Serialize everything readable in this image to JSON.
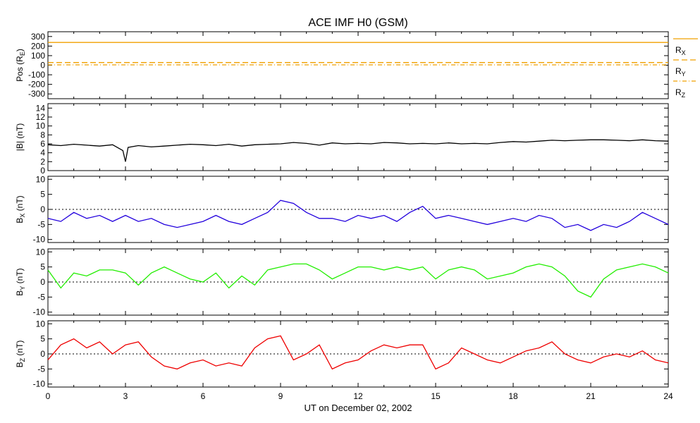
{
  "chart_data": {
    "title": "ACE IMF H0 (GSM)",
    "xlabel": "UT on December 02, 2002",
    "x_range": [
      0,
      24
    ],
    "x_ticks": [
      "0",
      "3",
      "6",
      "9",
      "12",
      "15",
      "18",
      "21",
      "24"
    ],
    "panels": [
      {
        "id": "pos",
        "type": "line",
        "ylabel": "Pos (R<sub>E</sub>)",
        "ylabel_main": "Pos (R",
        "ylabel_sub": "E",
        "ylabel_tail": ")",
        "ylim": [
          -350,
          350
        ],
        "yticks": [
          -300,
          -200,
          -100,
          0,
          100,
          200,
          300
        ],
        "zero_line": false,
        "series": [
          {
            "name": "RX",
            "color": "#f0a000",
            "style": "solid",
            "x": [
              0,
              24
            ],
            "y": [
              238,
              238
            ]
          },
          {
            "name": "RY",
            "color": "#f0a000",
            "style": "dashed",
            "x": [
              0,
              24
            ],
            "y": [
              28,
              28
            ]
          },
          {
            "name": "RZ",
            "color": "#f0a000",
            "style": "dashdot",
            "x": [
              0,
              24
            ],
            "y": [
              4,
              4
            ]
          }
        ],
        "legend": [
          {
            "main": "R",
            "sub": "X",
            "style": "solid"
          },
          {
            "main": "R",
            "sub": "Y",
            "style": "dashed"
          },
          {
            "main": "R",
            "sub": "Z",
            "style": "dashdot"
          }
        ]
      },
      {
        "id": "bmag",
        "type": "line",
        "ylabel_main": "|B| (nT)",
        "ylabel_sub": "",
        "ylabel_tail": "",
        "ylim": [
          0,
          15
        ],
        "yticks": [
          0,
          2,
          4,
          6,
          8,
          10,
          12,
          14
        ],
        "zero_line": false,
        "series": [
          {
            "name": "|B|",
            "color": "#000000",
            "x": [
              0,
              0.5,
              1,
              1.5,
              2,
              2.5,
              2.9,
              3,
              3.1,
              3.5,
              4,
              4.5,
              5,
              5.5,
              6,
              6.5,
              7,
              7.5,
              8,
              8.5,
              9,
              9.5,
              10,
              10.5,
              11,
              11.5,
              12,
              12.5,
              13,
              13.5,
              14,
              14.5,
              15,
              15.5,
              16,
              16.5,
              17,
              17.5,
              18,
              18.5,
              19,
              19.5,
              20,
              20.5,
              21,
              21.5,
              22,
              22.5,
              23,
              23.5,
              24
            ],
            "y": [
              5.8,
              5.6,
              5.9,
              5.7,
              5.5,
              5.8,
              4.5,
              2.0,
              5.2,
              5.6,
              5.3,
              5.5,
              5.7,
              5.9,
              5.8,
              5.6,
              5.9,
              5.5,
              5.8,
              5.9,
              6.0,
              6.3,
              6.1,
              5.7,
              6.2,
              6.0,
              6.1,
              6.0,
              6.3,
              6.2,
              6.0,
              6.1,
              6.0,
              6.2,
              6.0,
              6.1,
              6.0,
              6.3,
              6.5,
              6.4,
              6.6,
              6.8,
              6.7,
              6.8,
              6.9,
              6.9,
              6.8,
              6.7,
              6.9,
              6.7,
              6.6
            ]
          }
        ]
      },
      {
        "id": "bx",
        "type": "line",
        "ylabel_main": "B",
        "ylabel_sub": "X",
        "ylabel_tail": " (nT)",
        "ylim": [
          -11,
          11
        ],
        "yticks": [
          -10,
          -5,
          0,
          5,
          10
        ],
        "zero_line": true,
        "series": [
          {
            "name": "BX",
            "color": "#2200dd",
            "x": [
              0,
              0.5,
              1,
              1.5,
              2,
              2.5,
              3,
              3.5,
              4,
              4.5,
              5,
              5.5,
              6,
              6.5,
              7,
              7.5,
              8,
              8.5,
              9,
              9.5,
              10,
              10.5,
              11,
              11.5,
              12,
              12.5,
              13,
              13.5,
              14,
              14.5,
              15,
              15.5,
              16,
              16.5,
              17,
              17.5,
              18,
              18.5,
              19,
              19.5,
              20,
              20.5,
              21,
              21.5,
              22,
              22.5,
              23,
              23.5,
              24
            ],
            "y": [
              -3,
              -4,
              -1,
              -3,
              -2,
              -4,
              -2,
              -4,
              -3,
              -5,
              -6,
              -5,
              -4,
              -2,
              -4,
              -5,
              -3,
              -1,
              3,
              2,
              -1,
              -3,
              -3,
              -4,
              -2,
              -3,
              -2,
              -4,
              -1,
              1,
              -3,
              -2,
              -3,
              -4,
              -5,
              -4,
              -3,
              -4,
              -2,
              -3,
              -6,
              -5,
              -7,
              -5,
              -6,
              -4,
              -1,
              -3,
              -5
            ]
          }
        ]
      },
      {
        "id": "by",
        "type": "line",
        "ylabel_main": "B",
        "ylabel_sub": "Y",
        "ylabel_tail": " (nT)",
        "ylim": [
          -11,
          11
        ],
        "yticks": [
          -10,
          -5,
          0,
          5,
          10
        ],
        "zero_line": true,
        "series": [
          {
            "name": "BY",
            "color": "#22ee00",
            "x": [
              0,
              0.5,
              1,
              1.5,
              2,
              2.5,
              3,
              3.5,
              4,
              4.5,
              5,
              5.5,
              6,
              6.5,
              7,
              7.5,
              8,
              8.5,
              9,
              9.5,
              10,
              10.5,
              11,
              11.5,
              12,
              12.5,
              13,
              13.5,
              14,
              14.5,
              15,
              15.5,
              16,
              16.5,
              17,
              17.5,
              18,
              18.5,
              19,
              19.5,
              20,
              20.5,
              21,
              21.5,
              22,
              22.5,
              23,
              23.5,
              24
            ],
            "y": [
              4,
              -2,
              3,
              2,
              4,
              4,
              3,
              -1,
              3,
              5,
              3,
              1,
              0,
              3,
              -2,
              2,
              -1,
              4,
              5,
              6,
              6,
              4,
              1,
              3,
              5,
              5,
              4,
              5,
              4,
              5,
              1,
              4,
              5,
              4,
              1,
              2,
              3,
              5,
              6,
              5,
              2,
              -3,
              -5,
              1,
              4,
              5,
              6,
              5,
              3
            ]
          }
        ]
      },
      {
        "id": "bz",
        "type": "line",
        "ylabel_main": "B",
        "ylabel_sub": "Z",
        "ylabel_tail": " (nT)",
        "ylim": [
          -11,
          11
        ],
        "yticks": [
          -10,
          -5,
          0,
          5,
          10
        ],
        "zero_line": true,
        "series": [
          {
            "name": "BZ",
            "color": "#ee0000",
            "x": [
              0,
              0.5,
              1,
              1.5,
              2,
              2.5,
              3,
              3.5,
              4,
              4.5,
              5,
              5.5,
              6,
              6.5,
              7,
              7.5,
              8,
              8.5,
              9,
              9.5,
              10,
              10.5,
              11,
              11.5,
              12,
              12.5,
              13,
              13.5,
              14,
              14.5,
              15,
              15.5,
              16,
              16.5,
              17,
              17.5,
              18,
              18.5,
              19,
              19.5,
              20,
              20.5,
              21,
              21.5,
              22,
              22.5,
              23,
              23.5,
              24
            ],
            "y": [
              -2,
              3,
              5,
              2,
              4,
              0,
              3,
              4,
              -1,
              -4,
              -5,
              -3,
              -2,
              -4,
              -3,
              -4,
              2,
              5,
              6,
              -2,
              0,
              3,
              -5,
              -3,
              -2,
              1,
              3,
              2,
              3,
              3,
              -5,
              -3,
              2,
              0,
              -2,
              -3,
              -1,
              1,
              2,
              4,
              0,
              -2,
              -3,
              -1,
              0,
              -1,
              1,
              -2,
              -3
            ]
          }
        ]
      }
    ]
  }
}
